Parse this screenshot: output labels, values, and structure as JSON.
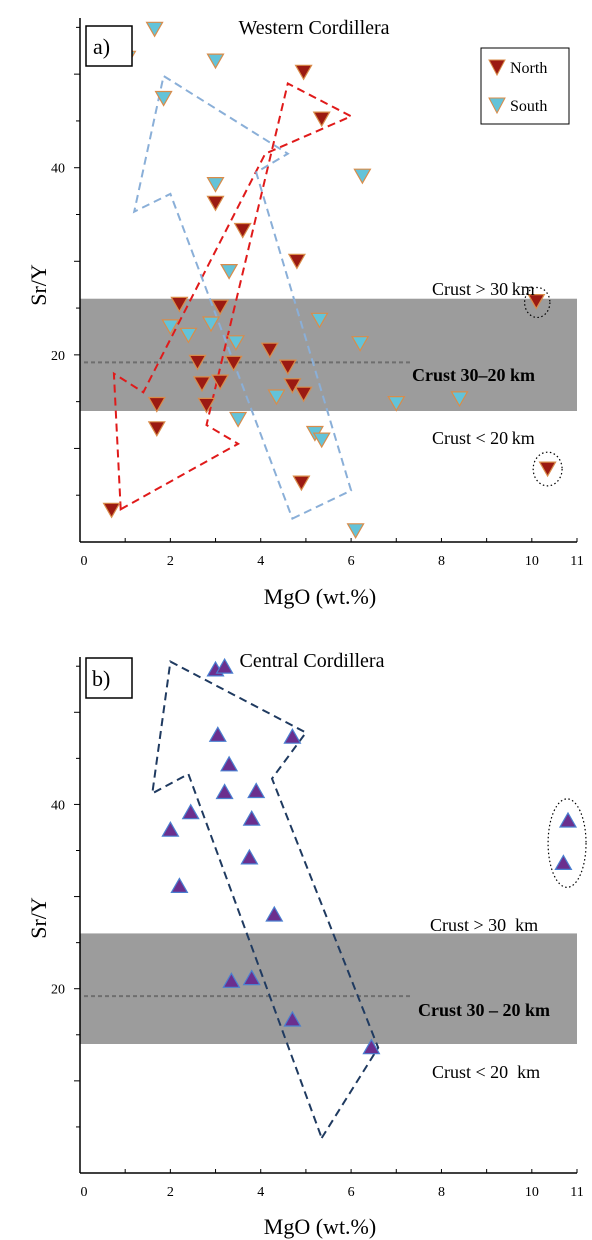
{
  "chart_data": [
    {
      "type": "scatter",
      "panel_label": "a)",
      "title": "Western Cordillera",
      "xlabel": "MgO (wt.%)",
      "ylabel": "Sr/Y",
      "xlim": [
        0,
        11
      ],
      "ylim": [
        0,
        56
      ],
      "x_ticks": [
        "0",
        "2",
        "4",
        "6",
        "8",
        "10",
        "11"
      ],
      "y_ticks": [
        "20",
        "40"
      ],
      "legend_position": "top-right",
      "bands": [
        {
          "label": "Crust 30–20 km",
          "y_from": 14,
          "y_to": 26,
          "color": "#9c9c9c",
          "midline": 19.2
        }
      ],
      "annotations": [
        "Crust > 30 km",
        "Crust < 20 km"
      ],
      "series": [
        {
          "name": "North",
          "marker": "triangle-down",
          "color": "#9b1a12",
          "points": [
            [
              0.7,
              3.5
            ],
            [
              1.7,
              14.8
            ],
            [
              1.7,
              12.2
            ],
            [
              2.2,
              25.5
            ],
            [
              2.6,
              19.3
            ],
            [
              2.7,
              17
            ],
            [
              2.8,
              14.7
            ],
            [
              3.0,
              36.3
            ],
            [
              3.1,
              25.2
            ],
            [
              3.1,
              17.2
            ],
            [
              3.4,
              19.2
            ],
            [
              3.6,
              33.4
            ],
            [
              4.2,
              20.6
            ],
            [
              4.6,
              18.8
            ],
            [
              4.7,
              16.8
            ],
            [
              4.8,
              30.1
            ],
            [
              4.9,
              6.4
            ],
            [
              4.95,
              15.9
            ],
            [
              4.95,
              50.3
            ],
            [
              5.35,
              45.3
            ],
            [
              10.1,
              25.8
            ],
            [
              10.35,
              7.9
            ]
          ]
        },
        {
          "name": "South",
          "marker": "triangle-down",
          "color": "#63c3d9",
          "points": [
            [
              1.05,
              51.8
            ],
            [
              1.65,
              54.9
            ],
            [
              1.85,
              47.5
            ],
            [
              2.0,
              23.1
            ],
            [
              2.4,
              22.2
            ],
            [
              2.9,
              23.4
            ],
            [
              3.0,
              51.5
            ],
            [
              3.0,
              38.3
            ],
            [
              3.3,
              29.0
            ],
            [
              3.45,
              21.4
            ],
            [
              3.5,
              13.2
            ],
            [
              4.35,
              15.6
            ],
            [
              5.2,
              11.7
            ],
            [
              5.3,
              23.8
            ],
            [
              5.35,
              11.0
            ],
            [
              6.1,
              1.3
            ],
            [
              6.2,
              21.3
            ],
            [
              6.25,
              39.2
            ],
            [
              7.0,
              14.9
            ],
            [
              8.4,
              15.4
            ]
          ]
        }
      ],
      "outlined_groups": [
        {
          "description": "red dashed arrow",
          "color": "#e01a1a",
          "polygon": [
            [
              0.9,
              3.5
            ],
            [
              3.5,
              10.5
            ],
            [
              2.8,
              12.5
            ],
            [
              4.6,
              49
            ],
            [
              6.0,
              45.5
            ],
            [
              4.1,
              41.5
            ],
            [
              1.4,
              16
            ],
            [
              0.75,
              18
            ]
          ]
        },
        {
          "description": "light blue dashed arrow",
          "color": "#8aafd8",
          "polygon": [
            [
              4.7,
              2.5
            ],
            [
              6.0,
              5.5
            ],
            [
              3.9,
              39.5
            ],
            [
              4.6,
              41.5
            ],
            [
              1.85,
              49.8
            ],
            [
              1.2,
              35.3
            ],
            [
              2.0,
              37.2
            ]
          ]
        },
        {
          "description": "dotted circle",
          "color": "#000000",
          "center": [
            10.12,
            25.6
          ],
          "radius_x": 0.28,
          "radius_y": 1.6
        },
        {
          "description": "dotted circle",
          "color": "#000000",
          "center": [
            10.35,
            7.8
          ],
          "radius_x": 0.32,
          "radius_y": 1.8
        }
      ]
    },
    {
      "type": "scatter",
      "panel_label": "b)",
      "title": "Central Cordillera",
      "xlabel": "MgO (wt.%)",
      "ylabel": "Sr/Y",
      "xlim": [
        0,
        11
      ],
      "ylim": [
        0,
        56
      ],
      "x_ticks": [
        "0",
        "2",
        "4",
        "6",
        "8",
        "10",
        "11"
      ],
      "y_ticks": [
        "20",
        "40"
      ],
      "bands": [
        {
          "label": "Crust 30 – 20 km",
          "y_from": 14,
          "y_to": 26,
          "color": "#9c9c9c",
          "midline": 19.2
        }
      ],
      "annotations": [
        "Crust > 30  km",
        "Crust < 20  km"
      ],
      "series": [
        {
          "marker": "triangle-up",
          "color": "#6b2f8e",
          "points": [
            [
              2.0,
              37.2
            ],
            [
              2.2,
              31.1
            ],
            [
              2.45,
              39.1
            ],
            [
              3.0,
              54.6
            ],
            [
              3.05,
              47.5
            ],
            [
              3.2,
              54.9
            ],
            [
              3.2,
              41.3
            ],
            [
              3.3,
              44.3
            ],
            [
              3.35,
              20.8
            ],
            [
              3.75,
              34.2
            ],
            [
              3.8,
              38.4
            ],
            [
              3.8,
              21.1
            ],
            [
              3.9,
              41.4
            ],
            [
              4.3,
              28.0
            ],
            [
              4.7,
              47.3
            ],
            [
              4.7,
              16.6
            ],
            [
              6.45,
              13.6
            ],
            [
              10.7,
              33.6
            ],
            [
              10.8,
              38.2
            ]
          ]
        }
      ],
      "outlined_groups": [
        {
          "description": "dark blue dashed arrow",
          "color": "#1f3a60",
          "polygon": [
            [
              5.35,
              3.8
            ],
            [
              6.6,
              13.6
            ],
            [
              4.25,
              42.8
            ],
            [
              5.0,
              47.8
            ],
            [
              2.0,
              55.5
            ],
            [
              1.6,
              41.2
            ],
            [
              2.4,
              43.3
            ]
          ]
        },
        {
          "description": "dotted circle",
          "color": "#000000",
          "center": [
            10.78,
            35.8
          ],
          "radius_x": 0.42,
          "radius_y": 4.8
        }
      ]
    }
  ]
}
